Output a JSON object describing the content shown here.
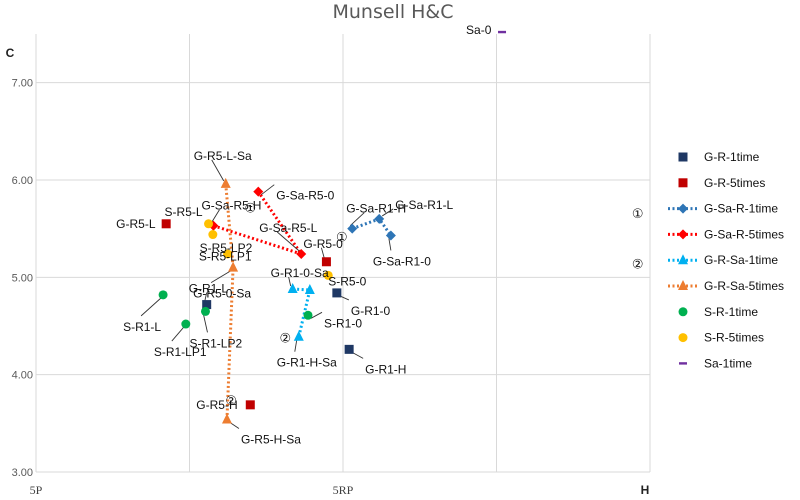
{
  "chart_data": {
    "type": "scatter",
    "title": "Munsell H&C",
    "xlabel": "H",
    "ylabel": "C",
    "xlim": [
      0,
      10
    ],
    "ylim": [
      3.0,
      7.5
    ],
    "x_ticks": [
      {
        "value": 0,
        "label": "5P"
      },
      {
        "value": 5,
        "label": "5RP"
      }
    ],
    "y_ticks": [
      {
        "value": 3.0,
        "label": "3.00"
      },
      {
        "value": 4.0,
        "label": "4.00"
      },
      {
        "value": 5.0,
        "label": "5.00"
      },
      {
        "value": 6.0,
        "label": "6.00"
      },
      {
        "value": 7.0,
        "label": "7.00"
      }
    ],
    "grid": true,
    "legend_position": "right",
    "series": [
      {
        "name": "G-R-1time",
        "marker": "square",
        "color": "#1f3864",
        "line": false,
        "points": [
          {
            "x": 2.78,
            "y": 4.72,
            "label": "G-R1-L"
          },
          {
            "x": 4.9,
            "y": 4.84,
            "label": "G-R1-0"
          },
          {
            "x": 5.1,
            "y": 4.26,
            "label": "G-R1-H"
          }
        ]
      },
      {
        "name": "G-R-5times",
        "marker": "square",
        "color": "#c00000",
        "line": false,
        "points": [
          {
            "x": 2.12,
            "y": 5.55,
            "label": "G-R5-L"
          },
          {
            "x": 4.73,
            "y": 5.16,
            "label": "G-R5-0"
          },
          {
            "x": 3.49,
            "y": 3.69,
            "label": "G-R5-H"
          }
        ]
      },
      {
        "name": "G-Sa-R-1time",
        "marker": "diamond",
        "color": "#2e75b6",
        "line": "dotted",
        "points": [
          {
            "x": 5.15,
            "y": 5.5,
            "label": "G-Sa-R1-H"
          },
          {
            "x": 5.59,
            "y": 5.6,
            "label": "G-Sa-R1-L"
          },
          {
            "x": 5.78,
            "y": 5.43,
            "label": "G-Sa-R1-0"
          }
        ]
      },
      {
        "name": "G-Sa-R-5times",
        "marker": "diamond",
        "color": "#ff0000",
        "line": "dotted",
        "points": [
          {
            "x": 2.89,
            "y": 5.53,
            "label": "G-Sa-R5-H"
          },
          {
            "x": 4.32,
            "y": 5.24,
            "label": "G-Sa-R5-L"
          },
          {
            "x": 3.62,
            "y": 5.88,
            "label": "G-Sa-R5-0"
          }
        ]
      },
      {
        "name": "G-R-Sa-1time",
        "marker": "triangle",
        "color": "#00b0f0",
        "line": "dotted",
        "points": [
          {
            "x": 4.18,
            "y": 4.88,
            "label": "G-R1-0-Sa"
          },
          {
            "x": 4.46,
            "y": 4.87,
            "label": ""
          },
          {
            "x": 4.28,
            "y": 4.39,
            "label": "G-R1-H-Sa"
          }
        ]
      },
      {
        "name": "G-R-Sa-5times",
        "marker": "triangle",
        "color": "#ed7d31",
        "line": "dotted",
        "points": [
          {
            "x": 3.09,
            "y": 5.96,
            "label": "G-R5-L-Sa"
          },
          {
            "x": 3.21,
            "y": 5.1,
            "label": "G-R5-0-Sa"
          },
          {
            "x": 3.11,
            "y": 3.54,
            "label": "G-R5-H-Sa"
          }
        ]
      },
      {
        "name": "S-R-1time",
        "marker": "circle",
        "color": "#00b050",
        "line": false,
        "points": [
          {
            "x": 2.07,
            "y": 4.82,
            "label": "S-R1-L"
          },
          {
            "x": 2.44,
            "y": 4.52,
            "label": "S-R1-LP1"
          },
          {
            "x": 2.76,
            "y": 4.65,
            "label": "S-R1-LP2"
          },
          {
            "x": 4.43,
            "y": 4.61,
            "label": "S-R1-0"
          }
        ]
      },
      {
        "name": "S-R-5times",
        "marker": "circle",
        "color": "#ffc000",
        "line": false,
        "points": [
          {
            "x": 2.81,
            "y": 5.55,
            "label": "S-R5-L"
          },
          {
            "x": 2.88,
            "y": 5.44,
            "label": "S-R5-LP1"
          },
          {
            "x": 3.12,
            "y": 5.24,
            "label": "S-R5-LP2"
          },
          {
            "x": 4.76,
            "y": 5.02,
            "label": "S-R5-0"
          }
        ]
      },
      {
        "name": "Sa-1time",
        "marker": "dash",
        "color": "#7030a0",
        "line": false,
        "points": [
          {
            "x": 7.59,
            "y": 7.52,
            "label": "Sa-0"
          }
        ]
      }
    ],
    "annotations": [
      {
        "text": "①",
        "x": 3.49,
        "y": 5.72
      },
      {
        "text": "①",
        "x": 4.98,
        "y": 5.42
      },
      {
        "text": "②",
        "x": 4.06,
        "y": 4.38
      },
      {
        "text": "②",
        "x": 3.18,
        "y": 3.74
      },
      {
        "text": "①",
        "x": 9.8,
        "y": 5.66
      },
      {
        "text": "②",
        "x": 9.8,
        "y": 5.14
      }
    ]
  }
}
